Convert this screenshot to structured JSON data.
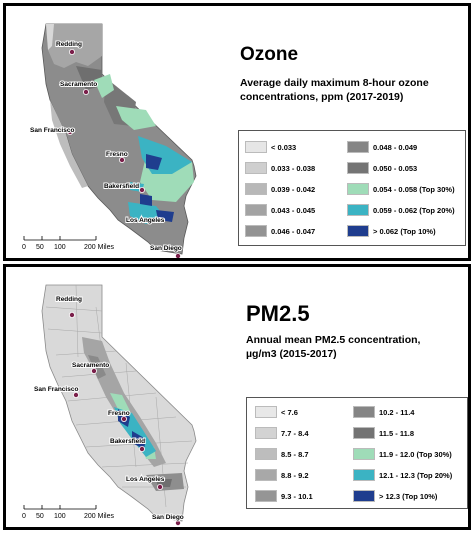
{
  "ozone": {
    "title": "Ozone",
    "subtitle_line1": "Average daily maximum 8-hour ozone",
    "subtitle_line2": "concentrations, ppm (2017-2019)",
    "cities": [
      "Redding",
      "Sacramento",
      "San Francisco",
      "Fresno",
      "Bakersfield",
      "Los Angeles",
      "San Diego"
    ],
    "scale": {
      "labels": [
        "0",
        "50",
        "100",
        "200 Miles"
      ]
    },
    "legend": [
      {
        "label": "< 0.033",
        "color": "#e6e6e6"
      },
      {
        "label": "0.033 - 0.038",
        "color": "#cfcfcf"
      },
      {
        "label": "0.039 - 0.042",
        "color": "#b8b8b8"
      },
      {
        "label": "0.043 - 0.045",
        "color": "#a3a3a3"
      },
      {
        "label": "0.046 - 0.047",
        "color": "#939393"
      },
      {
        "label": "0.048 - 0.049",
        "color": "#858585"
      },
      {
        "label": "0.050 - 0.053",
        "color": "#747474"
      },
      {
        "label": "0.054 - 0.058 (Top 30%)",
        "color": "#9fdcb8"
      },
      {
        "label": "0.059 - 0.062 (Top 20%)",
        "color": "#3bb3c3"
      },
      {
        "label": "> 0.062          (Top 10%)",
        "color": "#1f3d8e"
      }
    ]
  },
  "pm25": {
    "title": "PM2.5",
    "subtitle_line1": "Annual mean PM2.5 concentration,",
    "subtitle_line2": "µg/m3 (2015-2017)",
    "cities": [
      "Redding",
      "Sacramento",
      "San Francisco",
      "Fresno",
      "Bakersfield",
      "Los Angeles",
      "San Diego"
    ],
    "scale": {
      "labels": [
        "0",
        "50",
        "100",
        "200 Miles"
      ]
    },
    "legend": [
      {
        "label": "< 7.6",
        "color": "#e8e8e8"
      },
      {
        "label": "7.7 - 8.4",
        "color": "#d3d3d3"
      },
      {
        "label": "8.5 - 8.7",
        "color": "#bdbdbd"
      },
      {
        "label": "8.8 - 9.2",
        "color": "#a8a8a8"
      },
      {
        "label": "9.3 - 10.1",
        "color": "#959595"
      },
      {
        "label": "10.2 - 11.4",
        "color": "#858585"
      },
      {
        "label": "11.5 - 11.8",
        "color": "#737373"
      },
      {
        "label": "11.9 - 12.0 (Top 30%)",
        "color": "#9fdcb8"
      },
      {
        "label": "12.1 - 12.3 (Top 20%)",
        "color": "#3bb3c3"
      },
      {
        "label": "> 12.3        (Top 10%)",
        "color": "#1f3d8e"
      }
    ]
  }
}
